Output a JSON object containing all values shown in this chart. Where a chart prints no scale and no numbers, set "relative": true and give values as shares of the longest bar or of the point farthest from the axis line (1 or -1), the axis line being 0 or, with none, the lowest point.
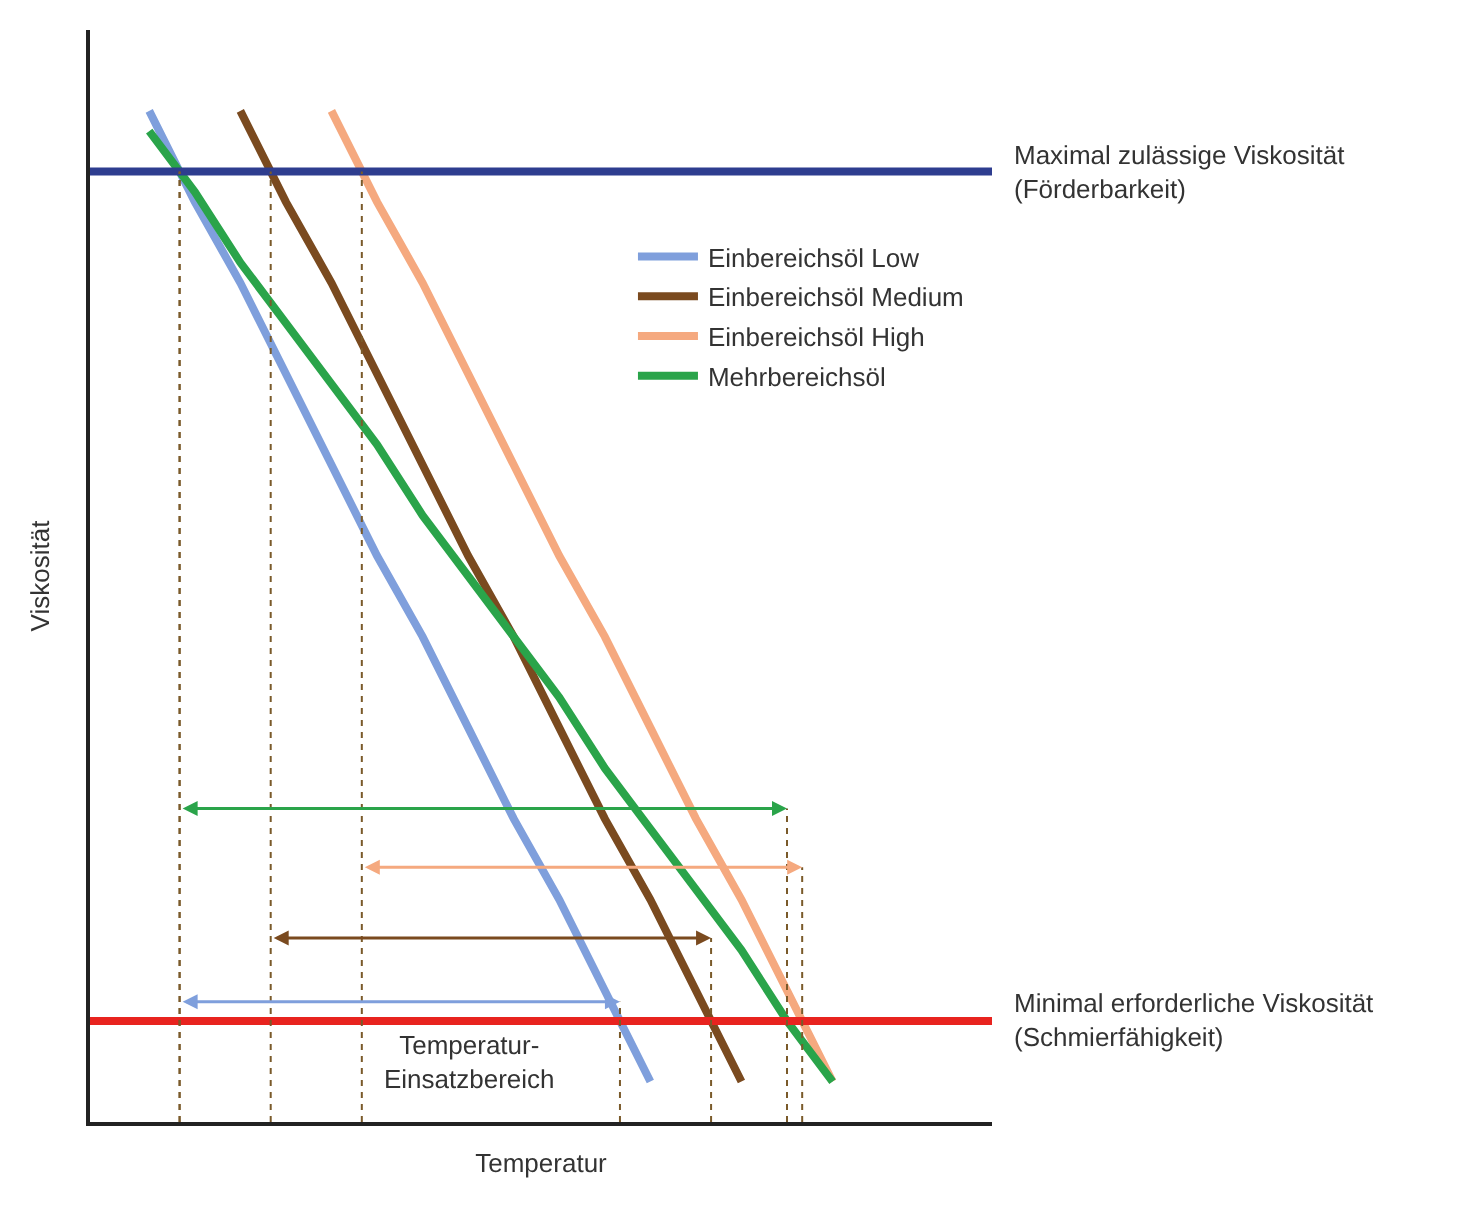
{
  "chart_data": {
    "type": "line",
    "relative": true,
    "xlabel": "Temperatur",
    "ylabel": "Viskosität",
    "tick_labels": false,
    "legend": "top right",
    "marker": "none",
    "line_style": "solid",
    "categories": [
      null,
      null,
      null,
      null,
      null,
      null,
      null,
      null,
      null,
      null,
      null,
      null,
      null,
      null,
      null,
      null,
      null,
      null,
      null
    ],
    "series": [
      {
        "name": "Einbereichsöl Low",
        "color": "#7f9fdc",
        "values": [
          1,
          0.91,
          0.83,
          0.74,
          0.65,
          0.56,
          0.48,
          0.39,
          0.3,
          0.22,
          0.13,
          0.04,
          null,
          null,
          null,
          null,
          null,
          null,
          null
        ]
      },
      {
        "name": "Einbereichsöl Medium",
        "color": "#7a4a1f",
        "values": [
          null,
          null,
          1,
          0.91,
          0.83,
          0.74,
          0.65,
          0.56,
          0.48,
          0.39,
          0.3,
          0.22,
          0.13,
          0.04,
          null,
          null,
          null,
          null,
          null
        ]
      },
      {
        "name": "Einbereichsöl High",
        "color": "#f5a97f",
        "values": [
          null,
          null,
          null,
          null,
          1,
          0.91,
          0.83,
          0.74,
          0.65,
          0.56,
          0.48,
          0.39,
          0.3,
          0.22,
          0.13,
          0.04,
          null,
          null,
          null
        ]
      },
      {
        "name": "Mehrbereichsöl",
        "color": "#2aa44a",
        "values": [
          0.98,
          0.92,
          0.85,
          0.79,
          0.73,
          0.67,
          0.6,
          0.54,
          0.48,
          0.42,
          0.35,
          0.29,
          0.23,
          0.17,
          0.1,
          0.04,
          null,
          null,
          null
        ]
      }
    ],
    "ref_lines": [
      {
        "axis": "y",
        "value": 0.94,
        "label": "Maximal zulässige Viskosität\n(Förderbarkeit)",
        "color": "#2e3d8f"
      },
      {
        "axis": "y",
        "value": 0.1,
        "label": "Minimal erforderliche Viskosität\n(Schmierfähigkeit)",
        "color": "#e8231f"
      }
    ],
    "annotations": [
      "Temperatur-\nEinsatzbereich"
    ]
  }
}
